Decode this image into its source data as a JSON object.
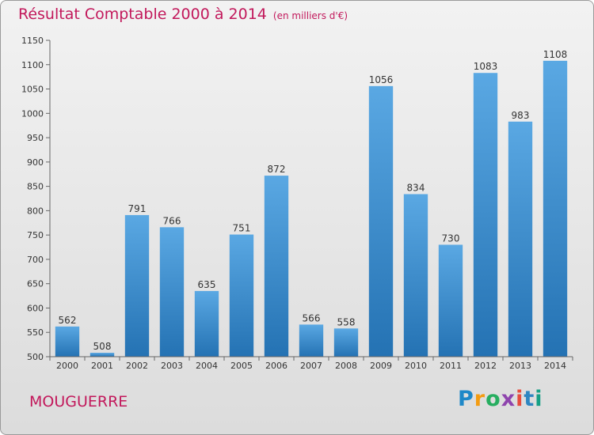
{
  "header": {
    "title": "Résultat Comptable 2000 à 2014",
    "subtitle": "(en milliers d'€)"
  },
  "footer": {
    "location": "MOUGUERRE",
    "logo": "Proxiti"
  },
  "colors": {
    "bar_top": "#5aa8e3",
    "bar_bottom": "#2472b3",
    "accent": "#c2185b"
  },
  "chart_data": {
    "type": "bar",
    "title": "Résultat Comptable 2000 à 2014",
    "subtitle": "(en milliers d'€)",
    "xlabel": "",
    "ylabel": "",
    "ylim": [
      500,
      1150
    ],
    "yticks": [
      500,
      550,
      600,
      650,
      700,
      750,
      800,
      850,
      900,
      950,
      1000,
      1050,
      1100,
      1150
    ],
    "grid": false,
    "categories": [
      "2000",
      "2001",
      "2002",
      "2003",
      "2004",
      "2005",
      "2006",
      "2007",
      "2008",
      "2009",
      "2010",
      "2011",
      "2012",
      "2013",
      "2014"
    ],
    "values": [
      562,
      508,
      791,
      766,
      635,
      751,
      872,
      566,
      558,
      1056,
      834,
      730,
      1083,
      983,
      1108
    ]
  }
}
